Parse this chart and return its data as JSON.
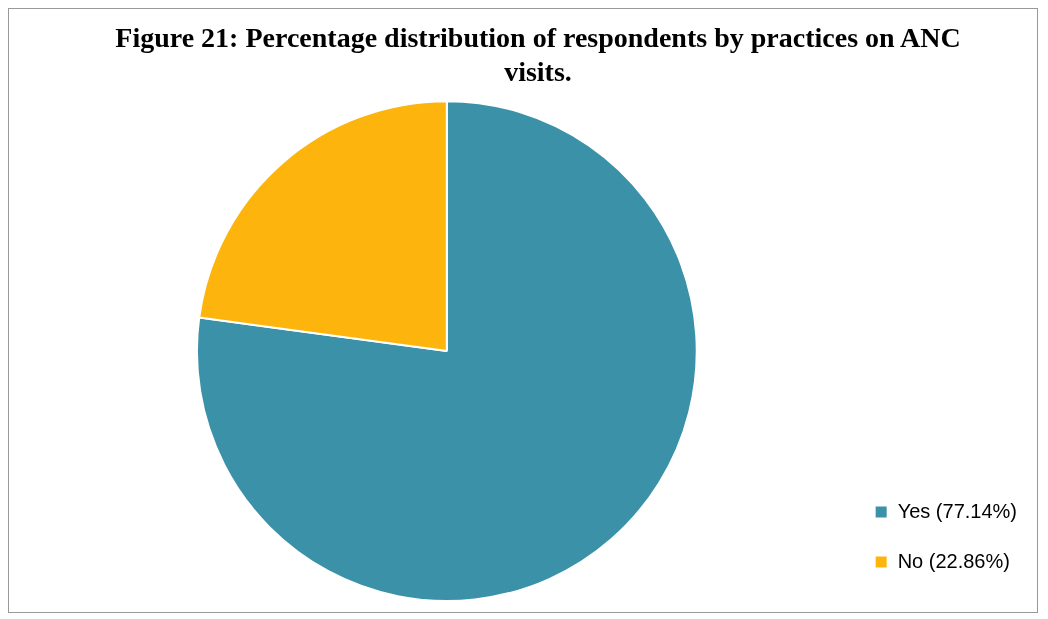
{
  "chart_data": {
    "type": "pie",
    "title": "Figure 21: Percentage distribution of respondents by practices on ANC visits.",
    "categories": [
      "Yes (77.14%)",
      "No (22.86%)"
    ],
    "values": [
      77.14,
      22.86
    ],
    "colors": [
      "#3a91a8",
      "#fdb50d"
    ],
    "legend": "bottom right"
  }
}
